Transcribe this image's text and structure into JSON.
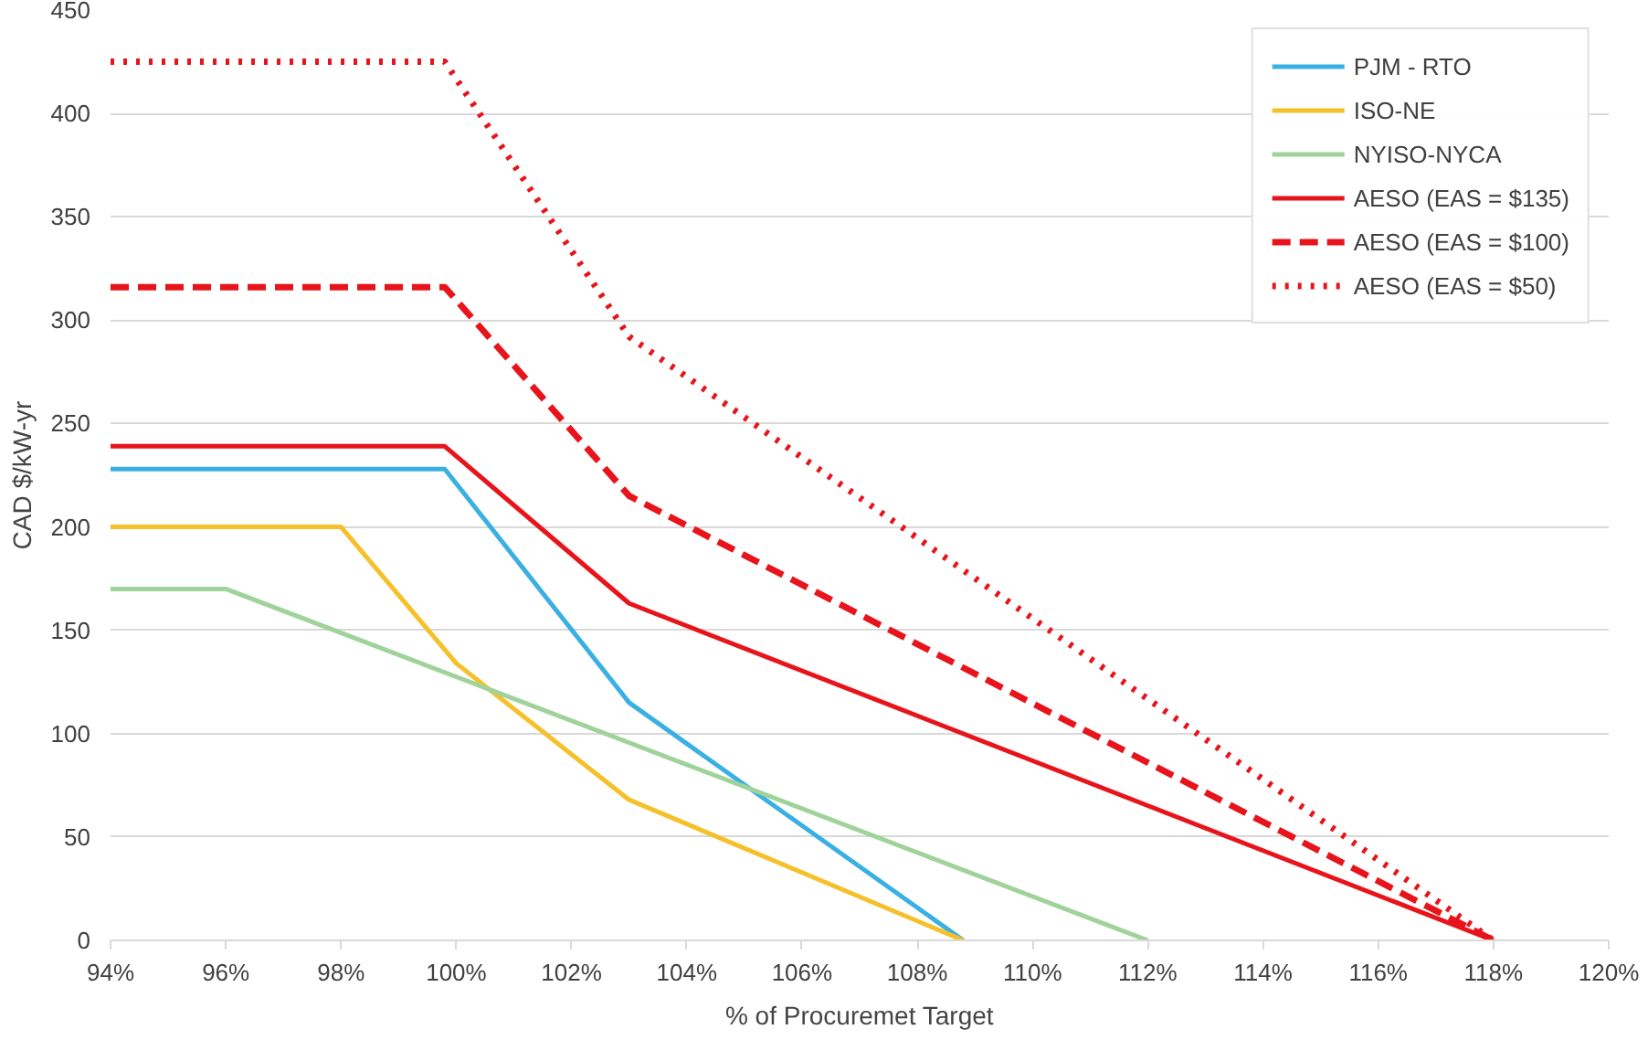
{
  "chart_data": {
    "type": "line",
    "xlabel": "% of Procuremet Target",
    "ylabel": "CAD $/kW-yr",
    "xlim": [
      94,
      120
    ],
    "xticks": [
      {
        "value": 94,
        "label": "94%"
      },
      {
        "value": 96,
        "label": "96%"
      },
      {
        "value": 98,
        "label": "98%"
      },
      {
        "value": 100,
        "label": "100%"
      },
      {
        "value": 102,
        "label": "102%"
      },
      {
        "value": 104,
        "label": "104%"
      },
      {
        "value": 106,
        "label": "106%"
      },
      {
        "value": 108,
        "label": "108%"
      },
      {
        "value": 110,
        "label": "110%"
      },
      {
        "value": 112,
        "label": "112%"
      },
      {
        "value": 114,
        "label": "114%"
      },
      {
        "value": 116,
        "label": "116%"
      },
      {
        "value": 118,
        "label": "118%"
      },
      {
        "value": 120,
        "label": "120%"
      }
    ],
    "ylim": [
      0,
      450
    ],
    "yticks": [
      0,
      50,
      100,
      150,
      200,
      250,
      300,
      350,
      400,
      450
    ],
    "grid": "y",
    "legend": "top right",
    "series": [
      {
        "name": "PJM - RTO",
        "color": "#3ab0e2",
        "x": [
          94,
          99.8,
          103,
          108.8
        ],
        "values": [
          228,
          228,
          115,
          0
        ]
      },
      {
        "name": "ISO-NE",
        "color": "#f5c02a",
        "x": [
          94,
          98,
          100,
          103,
          108.8
        ],
        "values": [
          200,
          200,
          134,
          68,
          0
        ]
      },
      {
        "name": "NYISO-NYCA",
        "color": "#9fd39a",
        "x": [
          94,
          96,
          112
        ],
        "values": [
          170,
          170,
          0
        ]
      },
      {
        "name": "AESO (EAS = $135)",
        "color": "#e8141b",
        "x": [
          94,
          99.8,
          103,
          118
        ],
        "values": [
          239,
          239,
          163,
          0
        ]
      },
      {
        "name": "AESO (EAS = $100)",
        "color": "#e8141b",
        "line_style": "dashed",
        "x": [
          94,
          99.8,
          103,
          118
        ],
        "values": [
          316,
          316,
          215,
          0
        ]
      },
      {
        "name": "AESO (EAS = $50)",
        "color": "#e8141b",
        "line_style": "dotted",
        "x": [
          94,
          99.8,
          103,
          118
        ],
        "values": [
          425,
          425,
          292,
          0
        ]
      }
    ]
  }
}
